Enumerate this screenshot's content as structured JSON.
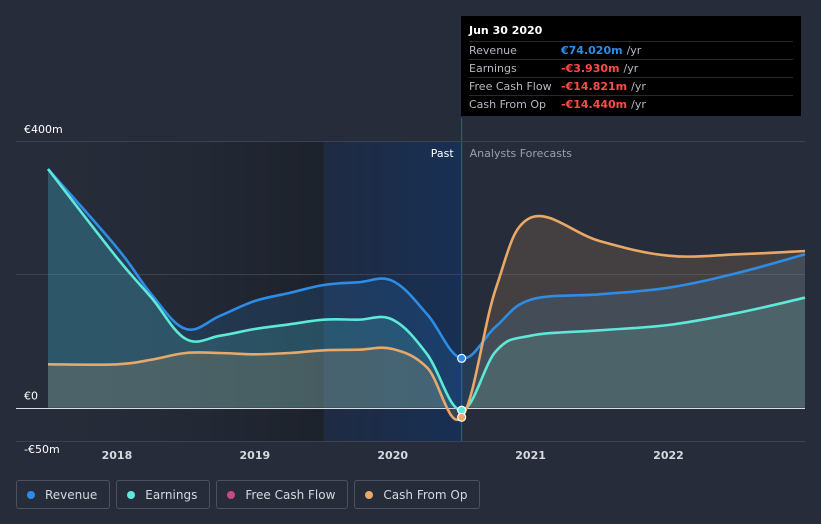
{
  "chart_data": {
    "type": "line",
    "y_unit": "€m",
    "ylim": [
      -50,
      400
    ],
    "x_ticks": [
      {
        "label": "2018",
        "x": 2018.0
      },
      {
        "label": "2019",
        "x": 2019.0
      },
      {
        "label": "2020",
        "x": 2020.0
      },
      {
        "label": "2021",
        "x": 2021.0
      },
      {
        "label": "2022",
        "x": 2022.0
      }
    ],
    "y_ticks": [
      {
        "label": "€400m",
        "value": 400
      },
      {
        "label": "€0",
        "value": 0
      },
      {
        "label": "-€50m",
        "value": -50
      }
    ],
    "x_range": [
      2017.5,
      2022.99
    ],
    "past_label": "Past",
    "forecast_label": "Analysts Forecasts",
    "highlight_start": 2019.5,
    "divider_x": 2020.5,
    "series": [
      {
        "name": "Revenue",
        "color": "#2d8ce6",
        "points": [
          [
            2017.5,
            358
          ],
          [
            2018.0,
            240
          ],
          [
            2018.25,
            170
          ],
          [
            2018.5,
            118
          ],
          [
            2018.75,
            138
          ],
          [
            2019.0,
            160
          ],
          [
            2019.25,
            172
          ],
          [
            2019.5,
            184
          ],
          [
            2019.75,
            188
          ],
          [
            2020.0,
            190
          ],
          [
            2020.25,
            140
          ],
          [
            2020.5,
            74
          ],
          [
            2020.75,
            122
          ],
          [
            2021.0,
            162
          ],
          [
            2021.5,
            170
          ],
          [
            2022.0,
            180
          ],
          [
            2022.5,
            202
          ],
          [
            2022.99,
            230
          ]
        ]
      },
      {
        "name": "Earnings",
        "color": "#5ee8d8",
        "points": [
          [
            2017.5,
            358
          ],
          [
            2018.0,
            225
          ],
          [
            2018.25,
            165
          ],
          [
            2018.5,
            103
          ],
          [
            2018.75,
            108
          ],
          [
            2019.0,
            118
          ],
          [
            2019.25,
            125
          ],
          [
            2019.5,
            132
          ],
          [
            2019.75,
            132
          ],
          [
            2020.0,
            132
          ],
          [
            2020.25,
            80
          ],
          [
            2020.5,
            -3.93
          ],
          [
            2020.75,
            85
          ],
          [
            2021.0,
            108
          ],
          [
            2021.5,
            116
          ],
          [
            2022.0,
            124
          ],
          [
            2022.5,
            142
          ],
          [
            2022.99,
            165
          ]
        ]
      },
      {
        "name": "Free Cash Flow",
        "color": "#c44a8a",
        "points": []
      },
      {
        "name": "Cash From Op",
        "color": "#e8a868",
        "points": [
          [
            2017.5,
            65
          ],
          [
            2018.0,
            65
          ],
          [
            2018.25,
            72
          ],
          [
            2018.5,
            82
          ],
          [
            2018.75,
            82
          ],
          [
            2019.0,
            80
          ],
          [
            2019.25,
            82
          ],
          [
            2019.5,
            86
          ],
          [
            2019.75,
            87
          ],
          [
            2020.0,
            88
          ],
          [
            2020.25,
            60
          ],
          [
            2020.5,
            -14.44
          ],
          [
            2020.75,
            180
          ],
          [
            2021.0,
            285
          ],
          [
            2021.5,
            250
          ],
          [
            2022.0,
            228
          ],
          [
            2022.5,
            230
          ],
          [
            2022.99,
            235
          ]
        ]
      }
    ]
  },
  "tooltip": {
    "date": "Jun 30 2020",
    "rows": [
      {
        "label": "Revenue",
        "value": "€74.020m",
        "unit": "/yr",
        "sign": "pos"
      },
      {
        "label": "Earnings",
        "value": "-€3.930m",
        "unit": "/yr",
        "sign": "neg"
      },
      {
        "label": "Free Cash Flow",
        "value": "-€14.821m",
        "unit": "/yr",
        "sign": "neg"
      },
      {
        "label": "Cash From Op",
        "value": "-€14.440m",
        "unit": "/yr",
        "sign": "neg"
      }
    ]
  },
  "legend": [
    {
      "label": "Revenue",
      "color": "#2d8ce6"
    },
    {
      "label": "Earnings",
      "color": "#5ee8d8"
    },
    {
      "label": "Free Cash Flow",
      "color": "#c44a8a"
    },
    {
      "label": "Cash From Op",
      "color": "#e8a868"
    }
  ]
}
